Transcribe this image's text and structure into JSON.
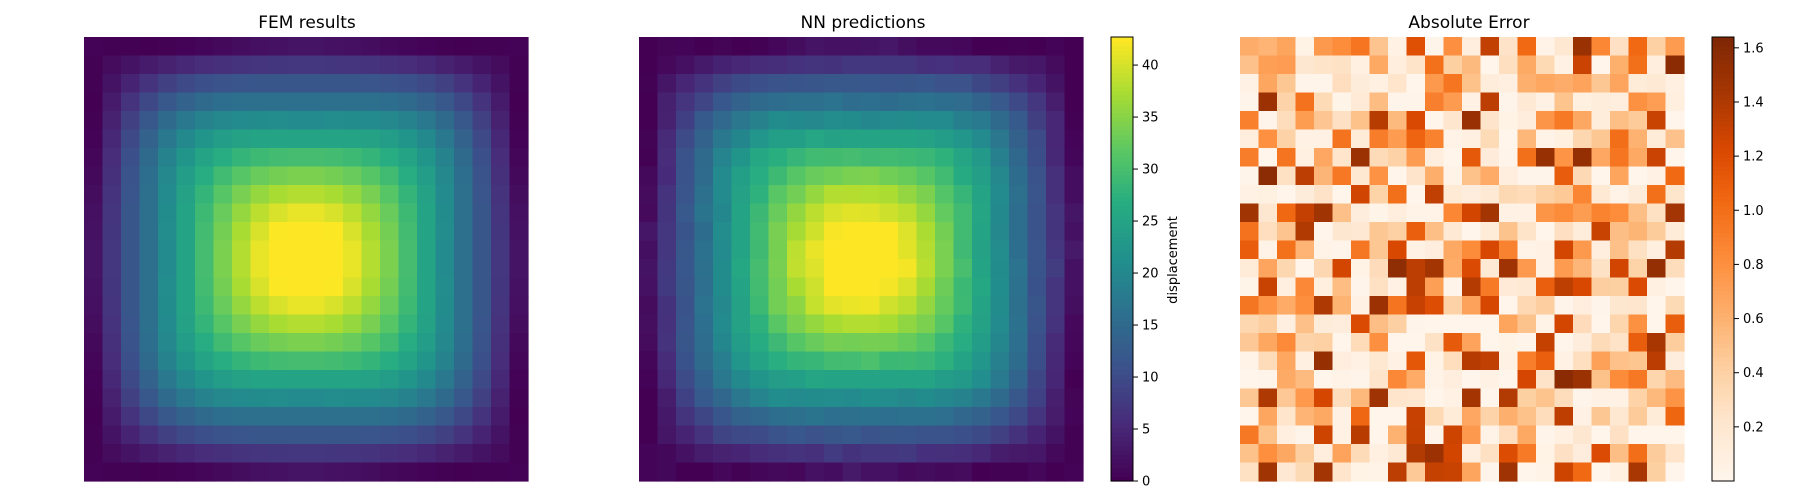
{
  "chart_data": [
    {
      "type": "heatmap",
      "title": "FEM results",
      "grid_size": 24,
      "colormap": "viridis",
      "value_range": [
        0,
        42.7
      ],
      "field": "center-peaked displacement with ridge pattern, peak near row 11-12, col 11-12 (0-indexed)",
      "axes_visible": false,
      "colorbar": false
    },
    {
      "type": "heatmap",
      "title": "NN predictions",
      "grid_size": 24,
      "colormap": "viridis",
      "value_range": [
        0,
        42.7
      ],
      "axes_visible": false,
      "colorbar": {
        "label": "displacement",
        "ticks": [
          0,
          5,
          10,
          15,
          20,
          25,
          30,
          35,
          40
        ],
        "range": [
          0,
          42.7
        ]
      }
    },
    {
      "type": "heatmap",
      "title": "Absolute Error",
      "grid_size": 24,
      "colormap": "Oranges",
      "value_range": [
        0.0,
        1.64
      ],
      "axes_visible": false,
      "colorbar": {
        "label": "",
        "ticks": [
          0.2,
          0.4,
          0.6,
          0.8,
          1.0,
          1.2,
          1.4,
          1.6
        ],
        "range": [
          0.0,
          1.64
        ]
      }
    }
  ]
}
